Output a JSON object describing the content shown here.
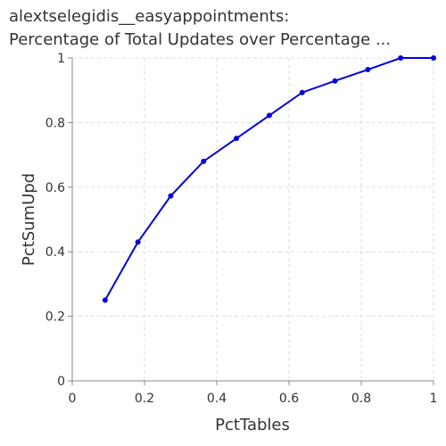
{
  "chart_data": {
    "type": "line",
    "title_lines": [
      "alextselegidis__easyappointments:",
      "Percentage of Total Updates over Percentage ..."
    ],
    "xlabel": "PctTables",
    "ylabel": "PctSumUpd",
    "xlim": [
      0,
      1
    ],
    "ylim": [
      0,
      1
    ],
    "x_ticks": [
      "0",
      "0.2",
      "0.4",
      "0.6",
      "0.8",
      "1"
    ],
    "y_ticks": [
      "0",
      "0.2",
      "0.4",
      "0.6",
      "0.8",
      "1"
    ],
    "grid": true,
    "series": [
      {
        "color": "#0000dd",
        "x": [
          0.0909,
          0.1818,
          0.2727,
          0.3636,
          0.4545,
          0.5455,
          0.6364,
          0.7273,
          0.8182,
          0.9091,
          1.0
        ],
        "y": [
          0.25,
          0.43,
          0.573,
          0.68,
          0.751,
          0.822,
          0.893,
          0.929,
          0.964,
          1.0,
          1.0
        ]
      }
    ]
  }
}
